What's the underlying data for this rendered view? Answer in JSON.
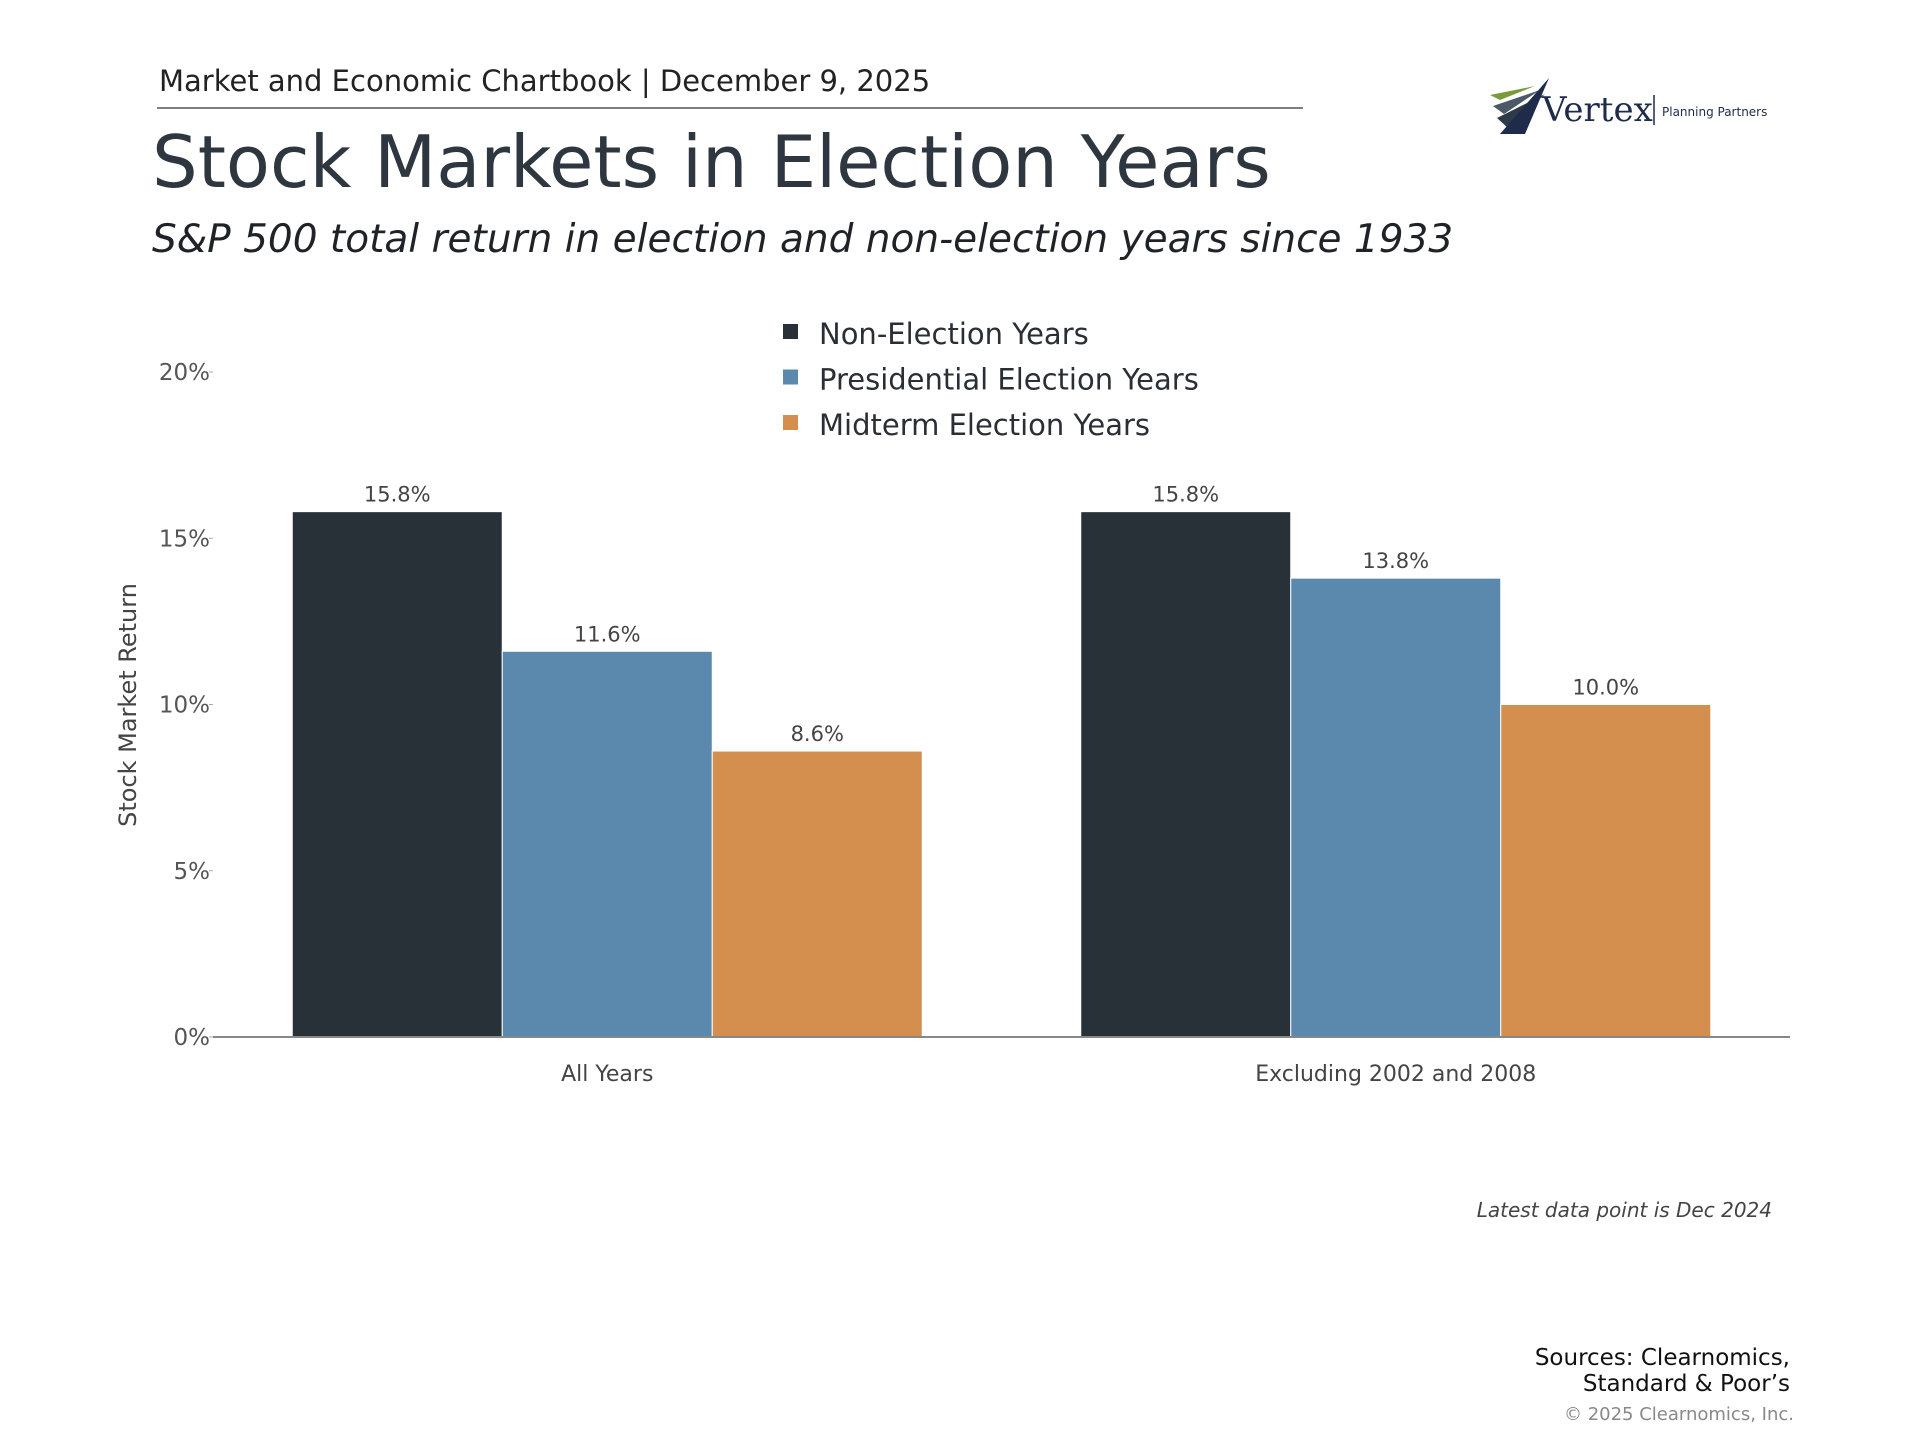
{
  "header": "Market and Economic Chartbook | December 9, 2025",
  "logo": {
    "name": "Vertex",
    "tagline": "Planning Partners"
  },
  "chart_data": {
    "type": "bar",
    "title": "Stock Markets in Election Years",
    "subtitle": "S&P 500 total return in election and non-election years since 1933",
    "y_label": "Stock Market Return",
    "categories": [
      "All Years",
      "Excluding 2002 and 2008"
    ],
    "series": [
      {
        "name": "Non-Election Years",
        "color": "#283138",
        "values": [
          15.8,
          15.8
        ],
        "value_labels": [
          "15.8%",
          "15.8%"
        ]
      },
      {
        "name": "Presidential Election Years",
        "color": "#5b89ad",
        "values": [
          11.6,
          13.8
        ],
        "value_labels": [
          "11.6%",
          "13.8%"
        ]
      },
      {
        "name": "Midterm Election Years",
        "color": "#d48e4d",
        "values": [
          8.6,
          10.0
        ],
        "value_labels": [
          "8.6%",
          "10.0%"
        ]
      }
    ],
    "ylim": [
      0,
      20
    ],
    "yticks": [
      {
        "value": 0,
        "label": "0%"
      },
      {
        "value": 5,
        "label": "5%"
      },
      {
        "value": 10,
        "label": "10%"
      },
      {
        "value": 15,
        "label": "15%"
      },
      {
        "value": 20,
        "label": "20%"
      }
    ],
    "grid": false,
    "legend": "top",
    "note": "Latest data point is Dec 2024"
  },
  "sources": [
    "Sources: Clearnomics,",
    "Standard & Poor’s"
  ],
  "copyright": "© 2025 Clearnomics, Inc."
}
